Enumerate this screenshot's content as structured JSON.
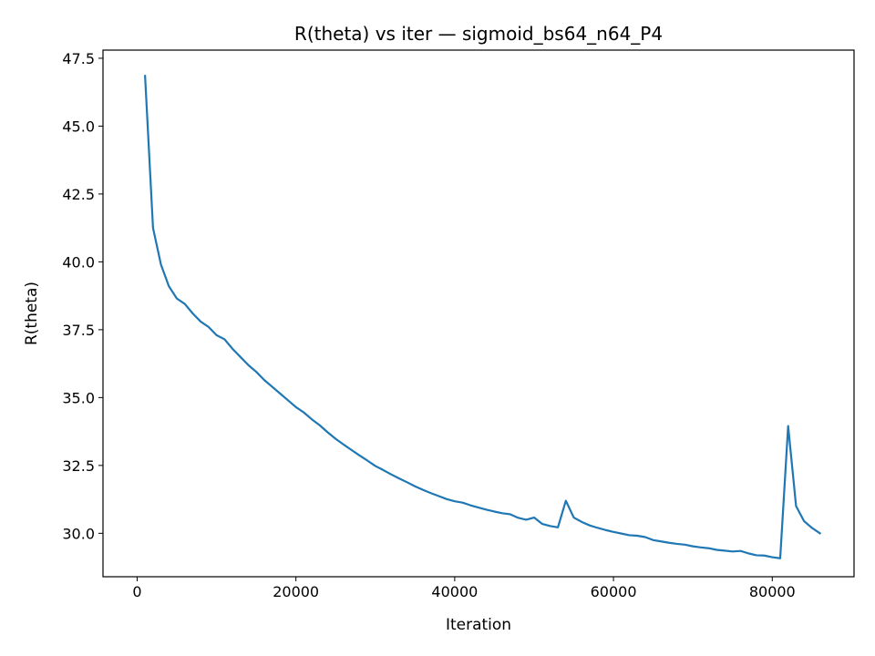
{
  "chart_data": {
    "type": "line",
    "title": "R(theta) vs iter — sigmoid_bs64_n64_P4",
    "xlabel": "Iteration",
    "ylabel": "R(theta)",
    "xlim": [
      -4300,
      90300
    ],
    "ylim": [
      28.4,
      47.8
    ],
    "xticks": [
      0,
      20000,
      40000,
      60000,
      80000
    ],
    "xtick_labels": [
      "0",
      "20000",
      "40000",
      "60000",
      "80000"
    ],
    "yticks": [
      30.0,
      32.5,
      35.0,
      37.5,
      40.0,
      42.5,
      45.0,
      47.5
    ],
    "ytick_labels": [
      "30.0",
      "32.5",
      "35.0",
      "37.5",
      "40.0",
      "42.5",
      "45.0",
      "47.5"
    ],
    "grid": false,
    "series": [
      {
        "color": "#1f77b4",
        "x": [
          1000,
          2000,
          3000,
          4000,
          5000,
          6000,
          7000,
          8000,
          9000,
          10000,
          11000,
          12000,
          13000,
          14000,
          15000,
          16000,
          17000,
          18000,
          19000,
          20000,
          21000,
          22000,
          23000,
          24000,
          25000,
          26000,
          27000,
          28000,
          29000,
          30000,
          31000,
          32000,
          33000,
          34000,
          35000,
          36000,
          37000,
          38000,
          39000,
          40000,
          41000,
          42000,
          43000,
          44000,
          45000,
          46000,
          47000,
          48000,
          49000,
          50000,
          51000,
          52000,
          53000,
          54000,
          55000,
          56000,
          57000,
          58000,
          59000,
          60000,
          61000,
          62000,
          63000,
          64000,
          65000,
          66000,
          67000,
          68000,
          69000,
          70000,
          71000,
          72000,
          73000,
          74000,
          75000,
          76000,
          77000,
          78000,
          79000,
          80000,
          81000,
          82000,
          83000,
          84000,
          85000,
          86000
        ],
        "y": [
          46.85,
          41.25,
          39.9,
          39.1,
          38.65,
          38.45,
          38.1,
          37.8,
          37.6,
          37.3,
          37.15,
          36.8,
          36.5,
          36.2,
          35.95,
          35.65,
          35.4,
          35.15,
          34.9,
          34.65,
          34.45,
          34.2,
          33.98,
          33.72,
          33.48,
          33.27,
          33.07,
          32.87,
          32.68,
          32.48,
          32.33,
          32.17,
          32.02,
          31.88,
          31.73,
          31.6,
          31.48,
          31.37,
          31.26,
          31.18,
          31.13,
          31.03,
          30.95,
          30.87,
          30.8,
          30.74,
          30.7,
          30.57,
          30.5,
          30.58,
          30.35,
          30.27,
          30.22,
          31.2,
          30.58,
          30.42,
          30.29,
          30.2,
          30.12,
          30.05,
          29.99,
          29.93,
          29.91,
          29.86,
          29.75,
          29.7,
          29.65,
          29.61,
          29.58,
          29.52,
          29.48,
          29.45,
          29.39,
          29.36,
          29.33,
          29.35,
          29.26,
          29.19,
          29.18,
          29.12,
          29.08,
          33.95,
          31.0,
          30.45,
          30.2,
          30.0
        ]
      }
    ]
  }
}
